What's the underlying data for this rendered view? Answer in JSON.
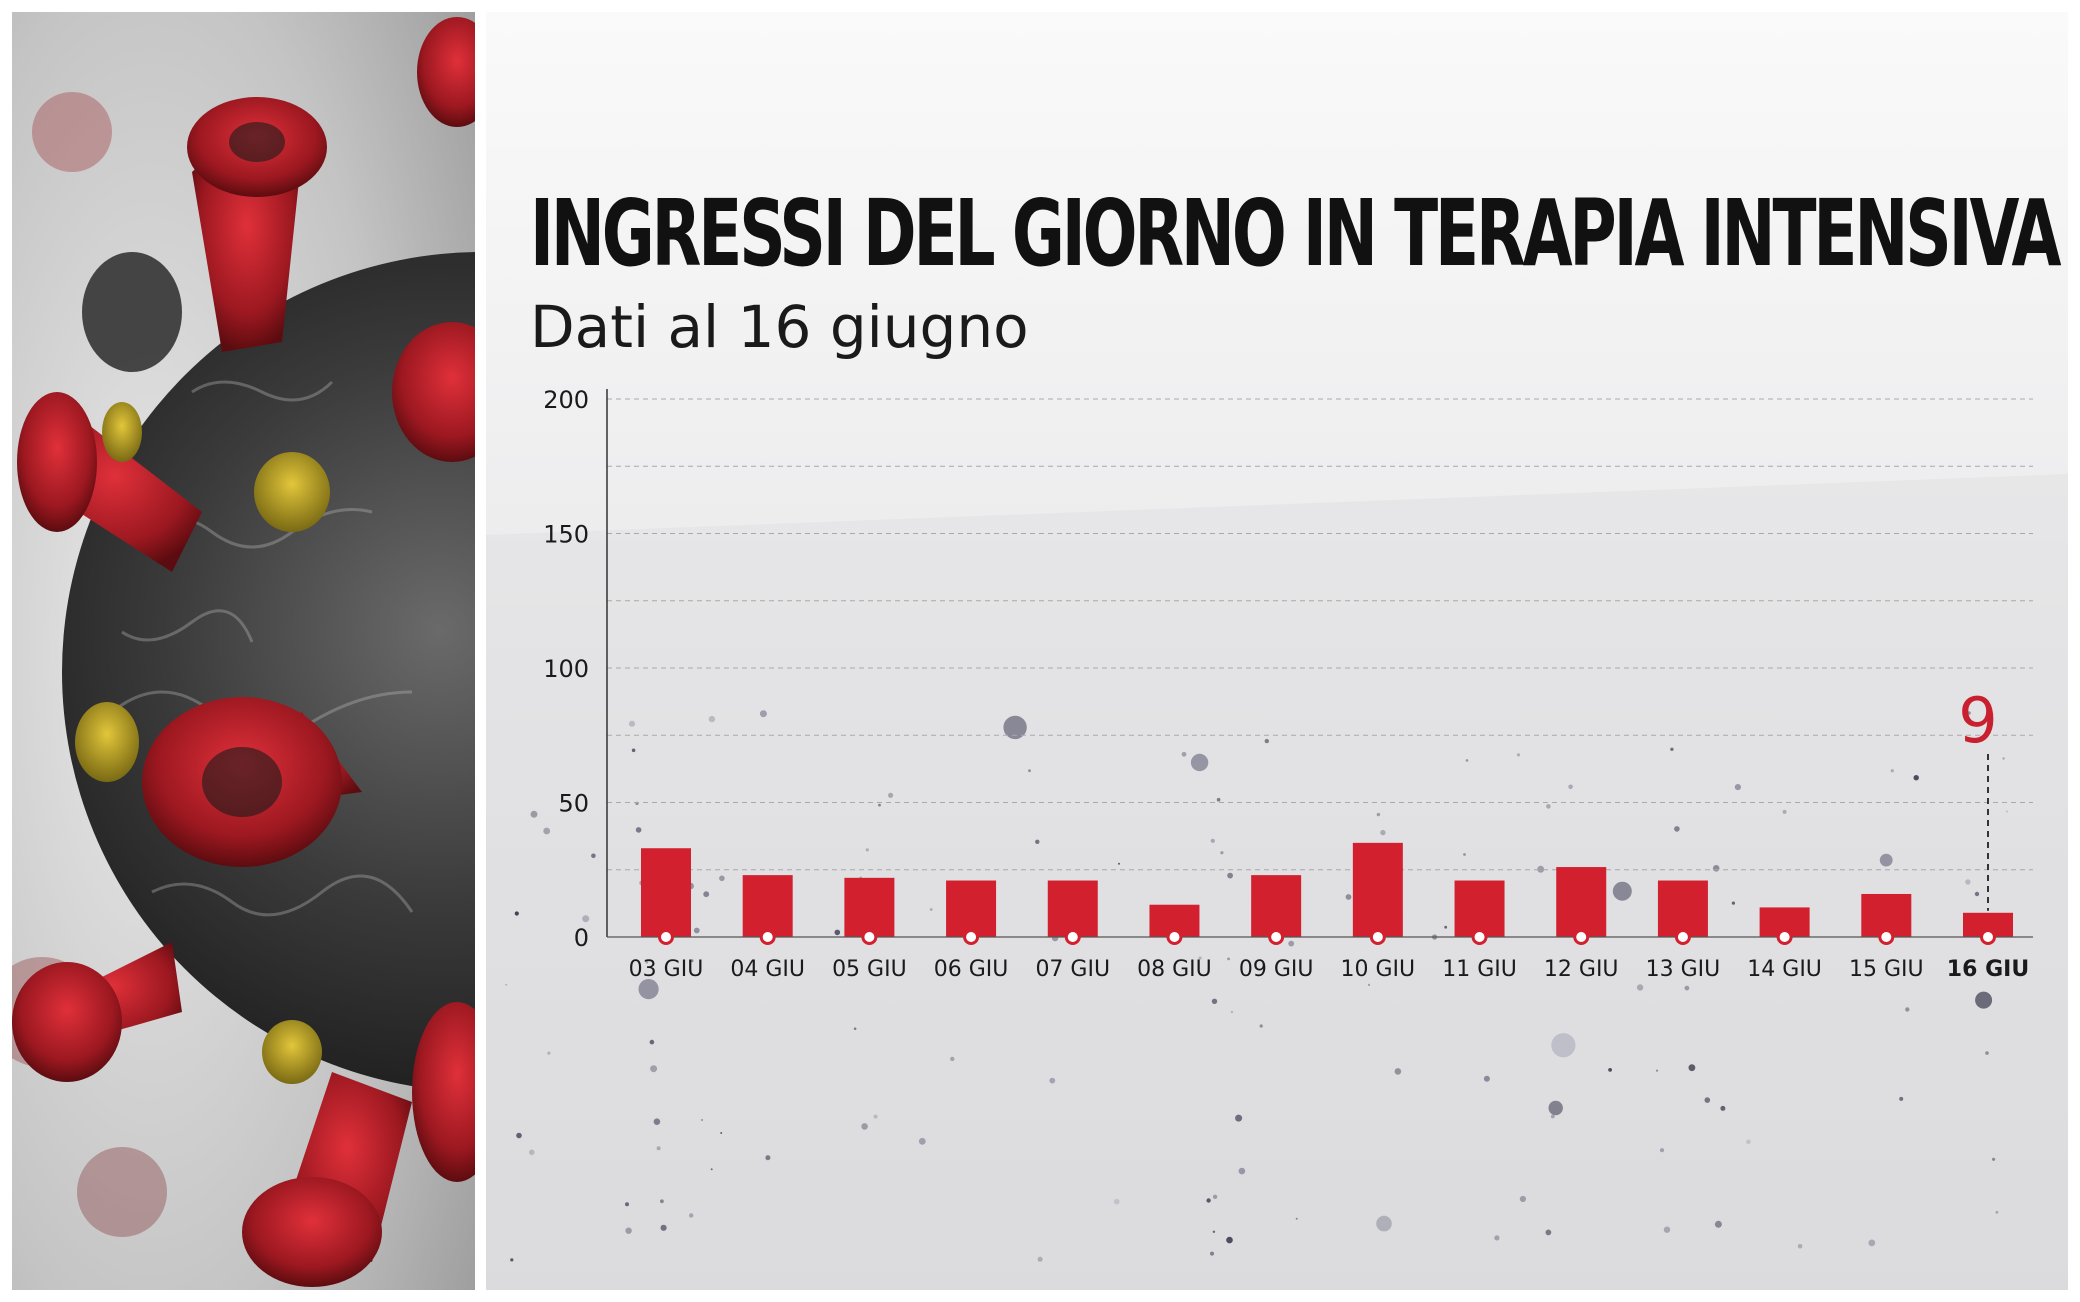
{
  "chart_data": {
    "type": "bar",
    "title": "INGRESSI DEL GIORNO IN TERAPIA INTENSIVA",
    "subtitle": "Dati al 16 giugno",
    "categories": [
      "03 GIU",
      "04 GIU",
      "05 GIU",
      "06 GIU",
      "07 GIU",
      "08 GIU",
      "09 GIU",
      "10 GIU",
      "11 GIU",
      "12 GIU",
      "13 GIU",
      "14 GIU",
      "15 GIU",
      "16 GIU"
    ],
    "values": [
      33,
      23,
      22,
      21,
      21,
      12,
      23,
      35,
      21,
      26,
      21,
      11,
      16,
      9
    ],
    "ylim": [
      0,
      200
    ],
    "yticks": [
      0,
      50,
      100,
      150,
      200
    ],
    "grid": true,
    "highlight": {
      "category": "16 GIU",
      "label": "9"
    },
    "colors": {
      "bar": "#d3202e",
      "highlight_label": "#c8202e",
      "marker_fill": "#ffffff"
    }
  }
}
